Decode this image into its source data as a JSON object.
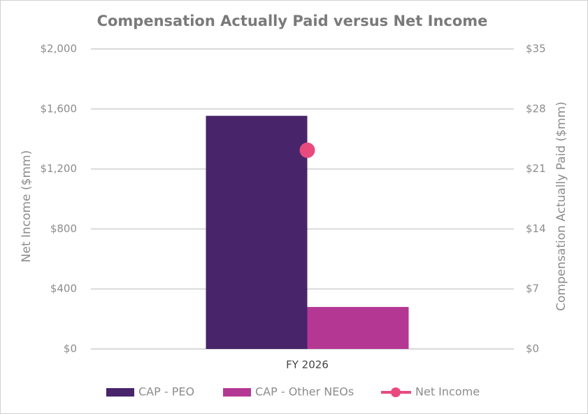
{
  "chart_data": {
    "type": "bar",
    "title": "Compensation Actually Paid versus Net Income",
    "categories": [
      "FY 2026"
    ],
    "ylabel": "Net Income ($mm)",
    "y2label": "Compensation Actually Paid ($mm)",
    "ylim": [
      0,
      2000
    ],
    "yticks": [
      {
        "value": 0,
        "label": "$0"
      },
      {
        "value": 400,
        "label": "$400"
      },
      {
        "value": 800,
        "label": "$800"
      },
      {
        "value": 1200,
        "label": "$1,200"
      },
      {
        "value": 1600,
        "label": "$1,600"
      },
      {
        "value": 2000,
        "label": "$2,000"
      }
    ],
    "y2lim": [
      0,
      35
    ],
    "y2ticks": [
      {
        "value": 0,
        "label": "$0"
      },
      {
        "value": 7,
        "label": "$7"
      },
      {
        "value": 14,
        "label": "$14"
      },
      {
        "value": 21,
        "label": "$21"
      },
      {
        "value": 28,
        "label": "$28"
      },
      {
        "value": 35,
        "label": "$35"
      }
    ],
    "grid": true,
    "legend": "bottom",
    "series": [
      {
        "name": "CAP - PEO",
        "color": "#48246a",
        "values": [
          27.2
        ],
        "axis": "y2",
        "type": "bar"
      },
      {
        "name": "CAP - Other NEOs",
        "color": "#b53794",
        "values": [
          4.9
        ],
        "axis": "y2",
        "type": "bar"
      },
      {
        "name": "Net Income",
        "color": "#e94a7e",
        "values": [
          1325
        ],
        "axis": "y",
        "type": "line"
      }
    ]
  }
}
